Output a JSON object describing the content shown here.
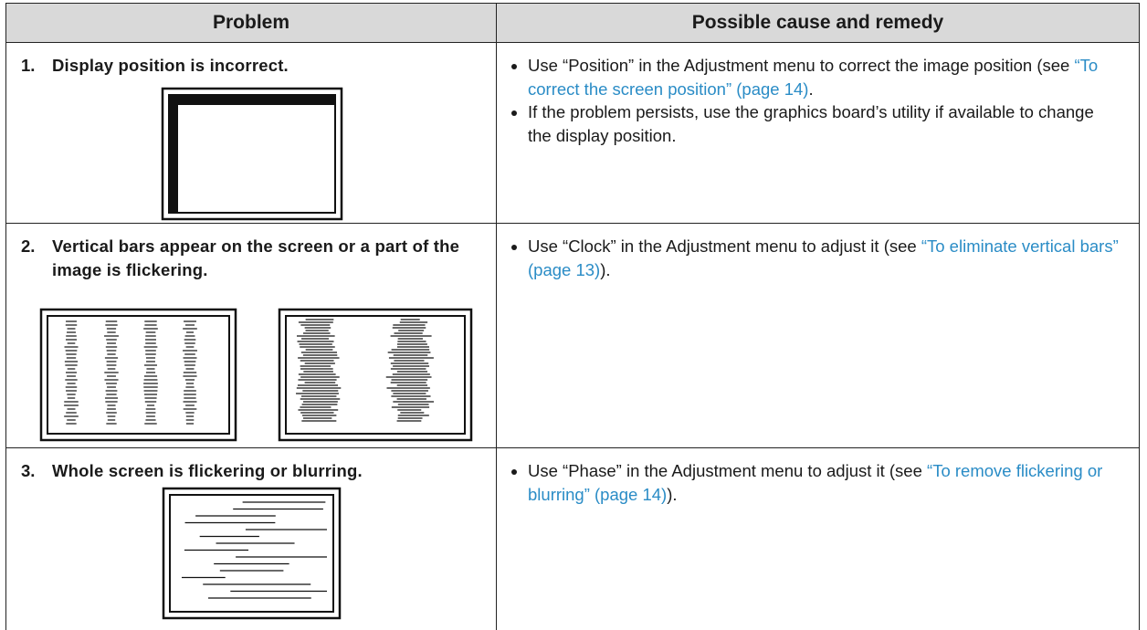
{
  "table": {
    "headers": [
      "Problem",
      "Possible cause and remedy"
    ],
    "rows": [
      {
        "problem": {
          "number": "1.",
          "text": "Display position is incorrect."
        },
        "remedy": [
          {
            "before": "Use “Position” in the Adjustment menu to correct the image position (see ",
            "link": "“To correct the screen position” (page 14)",
            "after": "."
          },
          {
            "before": "If the problem persists, use the graphics board’s utility if available to change the display position."
          }
        ]
      },
      {
        "problem": {
          "number": "2.",
          "text": "Vertical bars appear on the screen or a part of the image is flickering."
        },
        "remedy": [
          {
            "before": "Use “Clock” in the Adjustment menu to adjust it (see ",
            "link": "“To eliminate vertical bars” (page 13)",
            "after": ")."
          }
        ]
      },
      {
        "problem": {
          "number": "3.",
          "text": "Whole screen is flickering or blurring."
        },
        "remedy": [
          {
            "before": "Use “Phase” in the Adjustment menu to adjust it (see ",
            "link": "“To remove flickering or blurring” (page 14)",
            "after": ")."
          }
        ]
      }
    ]
  }
}
